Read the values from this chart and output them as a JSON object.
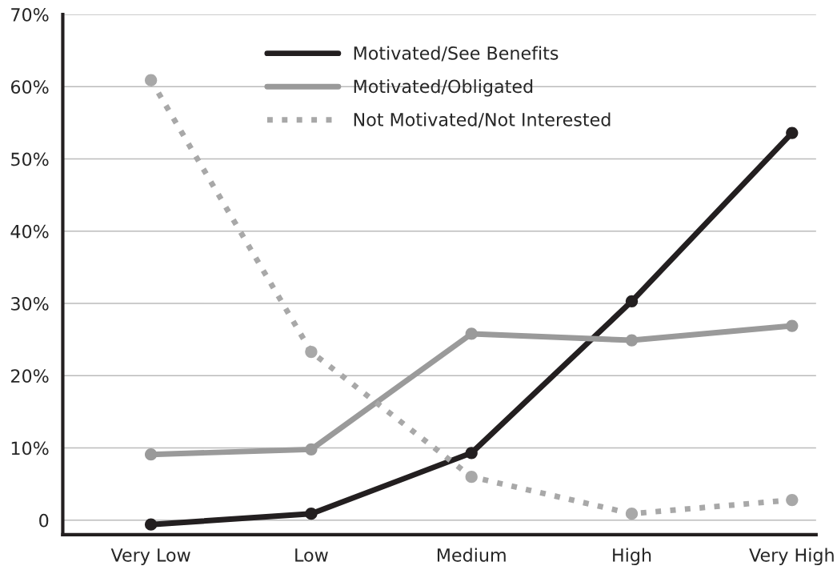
{
  "chart_data": {
    "type": "line",
    "categories": [
      "Very Low",
      "Low",
      "Medium",
      "High",
      "Very High"
    ],
    "series": [
      {
        "name": "Motivated/See Benefits",
        "color": "#231f20",
        "line_style": "solid",
        "values": [
          -0.6,
          0.9,
          9.3,
          30.3,
          53.6
        ]
      },
      {
        "name": "Motivated/Obligated",
        "color": "#9a9a9a",
        "line_style": "solid",
        "values": [
          9.1,
          9.8,
          25.8,
          24.9,
          26.9
        ]
      },
      {
        "name": "Not Motivated/Not Interested",
        "color": "#a8a8a8",
        "line_style": "dotted",
        "values": [
          60.9,
          23.3,
          6.0,
          0.9,
          2.8
        ]
      }
    ],
    "ylim": [
      -2,
      70
    ],
    "yticks": [
      {
        "value": 0,
        "label": "0"
      },
      {
        "value": 10,
        "label": "10%"
      },
      {
        "value": 20,
        "label": "20%"
      },
      {
        "value": 30,
        "label": "30%"
      },
      {
        "value": 40,
        "label": "40%"
      },
      {
        "value": 50,
        "label": "50%"
      },
      {
        "value": 60,
        "label": "60%"
      },
      {
        "value": 70,
        "label": "70%"
      }
    ],
    "grid": "y",
    "legend": "top",
    "marker": "circle"
  }
}
